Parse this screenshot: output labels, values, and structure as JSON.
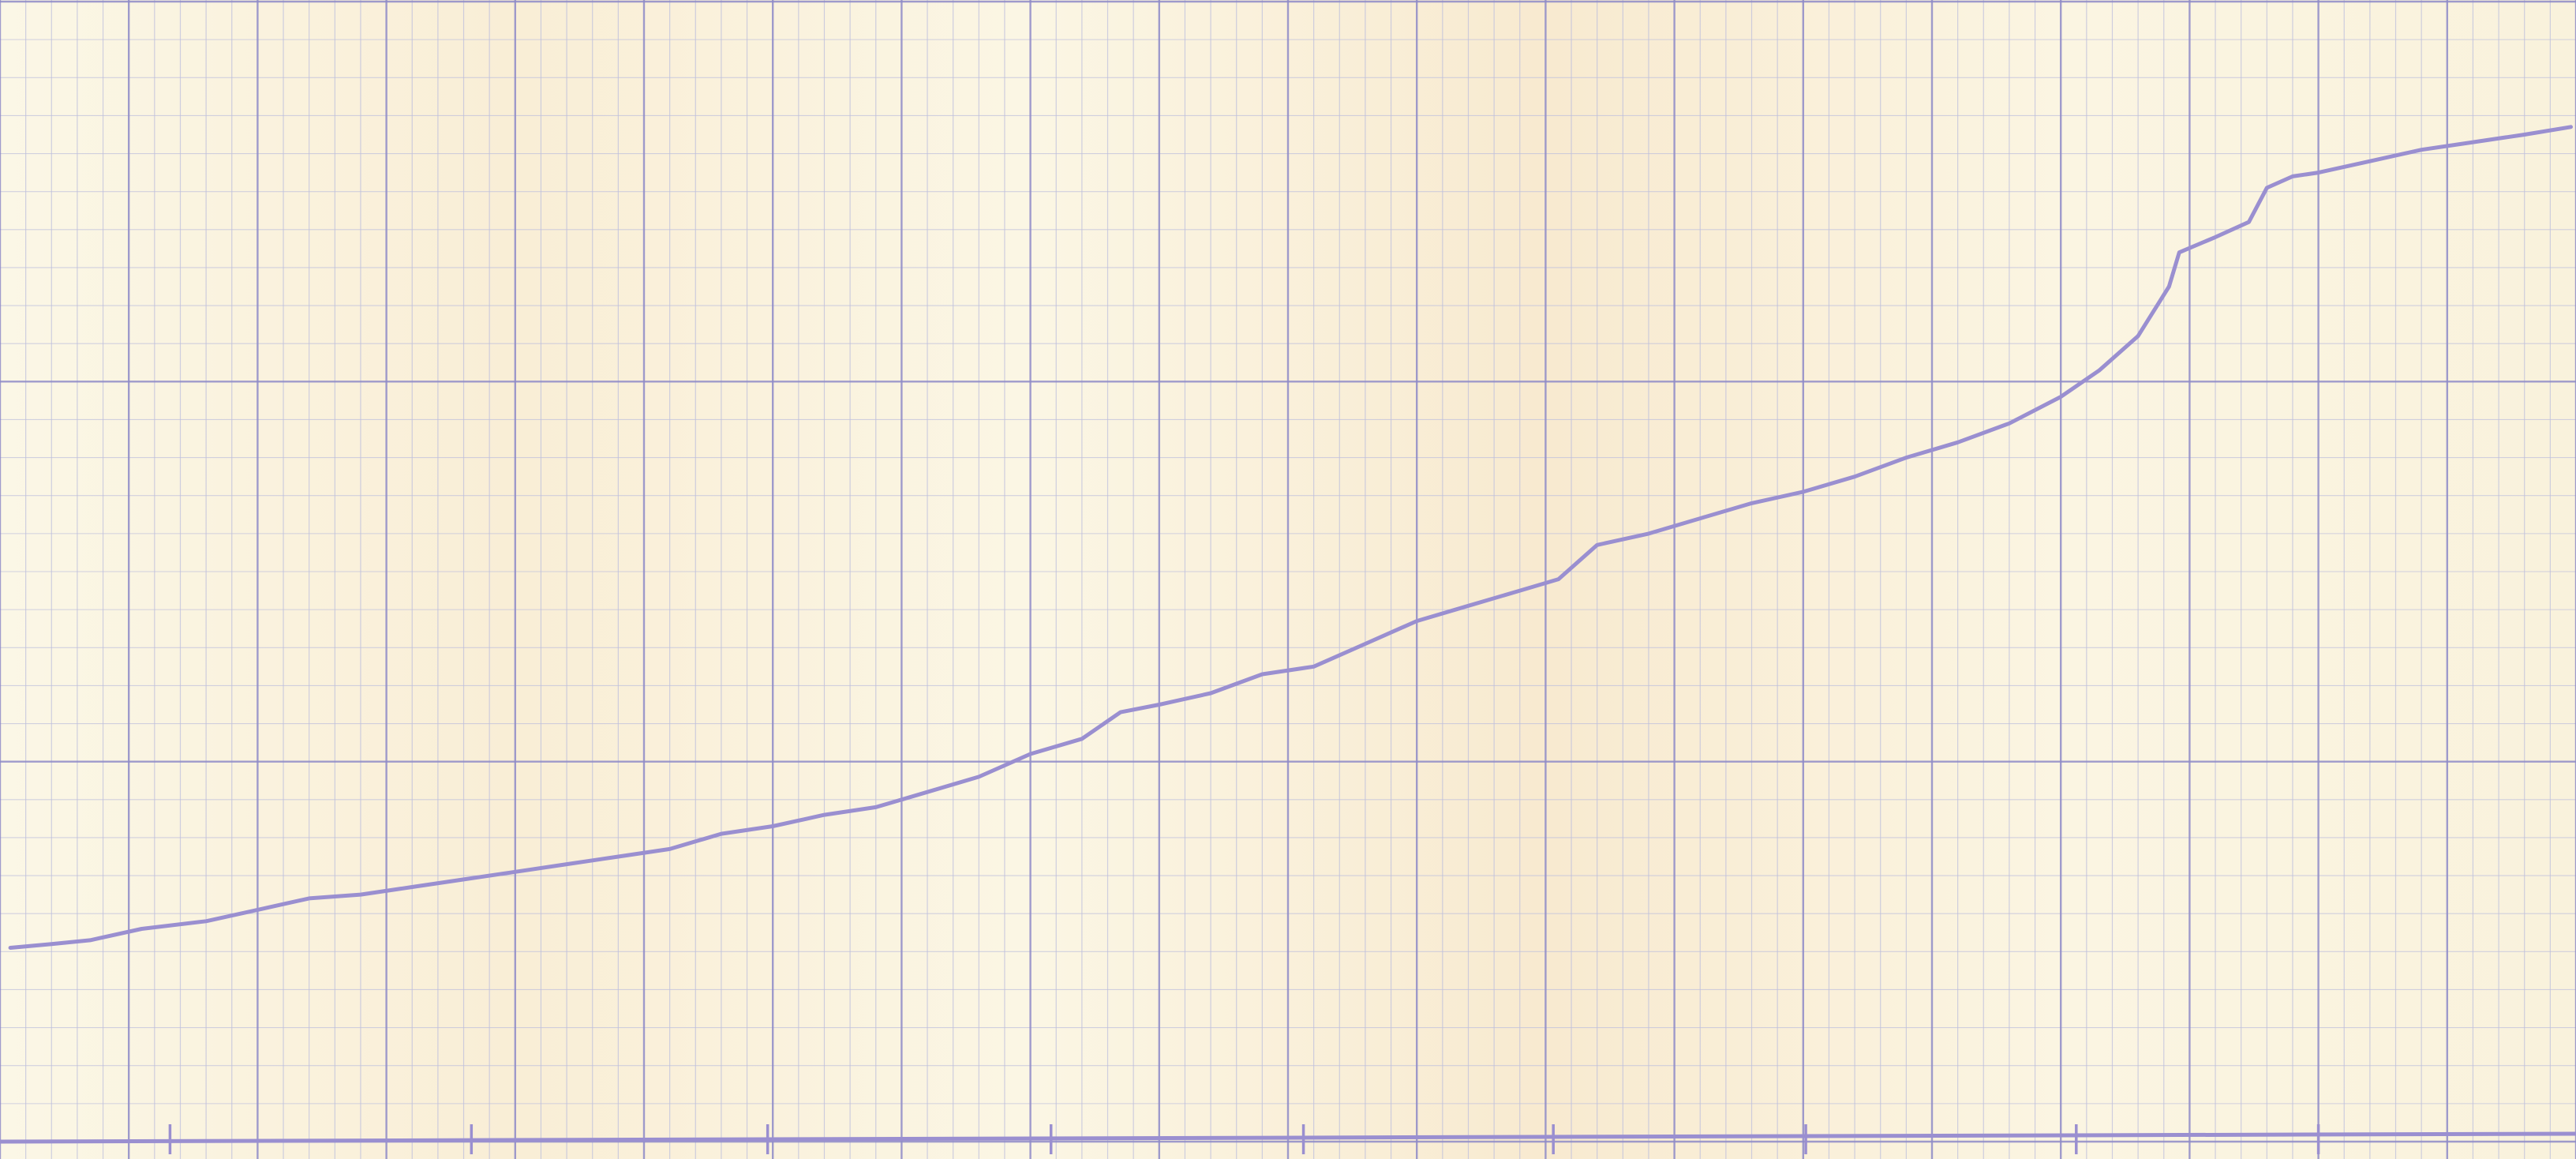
{
  "chart_data": {
    "type": "line",
    "title": "",
    "xlabel": "",
    "ylabel": "",
    "grid": true,
    "x_range": [
      0,
      100
    ],
    "y_range": [
      0,
      3
    ],
    "x_major_divisions": 20,
    "y_major_divisions": 3,
    "series": [
      {
        "values": [
          [
            0.4,
            0.51
          ],
          [
            2.0,
            0.52
          ],
          [
            3.5,
            0.53
          ],
          [
            5.5,
            0.56
          ],
          [
            8.0,
            0.58
          ],
          [
            10.0,
            0.61
          ],
          [
            12.0,
            0.64
          ],
          [
            14.0,
            0.65
          ],
          [
            16.0,
            0.67
          ],
          [
            18.0,
            0.69
          ],
          [
            20.0,
            0.71
          ],
          [
            22.0,
            0.73
          ],
          [
            24.0,
            0.75
          ],
          [
            26.0,
            0.77
          ],
          [
            28.0,
            0.81
          ],
          [
            30.0,
            0.83
          ],
          [
            32.0,
            0.86
          ],
          [
            34.0,
            0.88
          ],
          [
            36.0,
            0.92
          ],
          [
            38.0,
            0.96
          ],
          [
            40.0,
            1.02
          ],
          [
            42.0,
            1.06
          ],
          [
            43.5,
            1.13
          ],
          [
            45.0,
            1.15
          ],
          [
            47.0,
            1.18
          ],
          [
            49.0,
            1.23
          ],
          [
            51.0,
            1.25
          ],
          [
            53.0,
            1.31
          ],
          [
            55.0,
            1.37
          ],
          [
            57.0,
            1.41
          ],
          [
            59.0,
            1.45
          ],
          [
            60.5,
            1.48
          ],
          [
            62.0,
            1.57
          ],
          [
            64.0,
            1.6
          ],
          [
            66.0,
            1.64
          ],
          [
            68.0,
            1.68
          ],
          [
            70.0,
            1.71
          ],
          [
            72.0,
            1.75
          ],
          [
            74.0,
            1.8
          ],
          [
            76.0,
            1.84
          ],
          [
            78.0,
            1.89
          ],
          [
            80.0,
            1.96
          ],
          [
            81.5,
            2.03
          ],
          [
            83.0,
            2.12
          ],
          [
            84.2,
            2.25
          ],
          [
            84.6,
            2.34
          ],
          [
            86.0,
            2.38
          ],
          [
            87.3,
            2.42
          ],
          [
            88.0,
            2.51
          ],
          [
            89.0,
            2.54
          ],
          [
            90.0,
            2.55
          ],
          [
            92.0,
            2.58
          ],
          [
            94.0,
            2.61
          ],
          [
            96.0,
            2.63
          ],
          [
            98.0,
            2.65
          ],
          [
            99.8,
            2.67
          ]
        ]
      }
    ],
    "baseline_ticks": [
      6.6,
      18.3,
      29.8,
      40.8,
      50.6,
      60.3,
      70.1,
      80.6,
      90.0
    ],
    "colors": {
      "paper": "#f7f1dc",
      "grid_minor": "#bfc0dd",
      "grid_major": "#8f8bc8",
      "trace": "#9a8fd0"
    }
  }
}
